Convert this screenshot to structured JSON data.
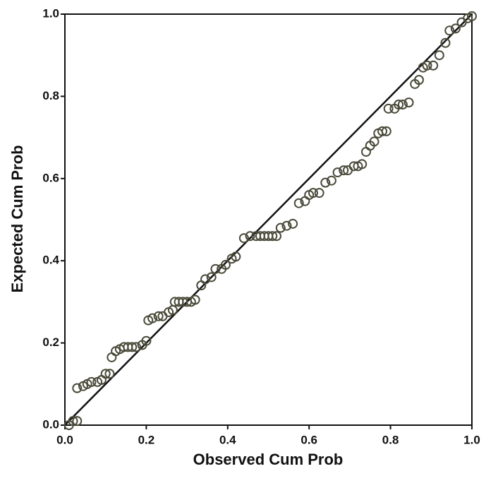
{
  "chart_data": {
    "type": "scatter",
    "x_label": "Observed Cum Prob",
    "y_label": "Expected Cum Prob",
    "color": "#4a4a3a",
    "xlim": [
      0,
      1
    ],
    "ylim": [
      0,
      1
    ],
    "xticks": [
      {
        "value": 0,
        "label": "0.0"
      },
      0.2,
      0.4,
      0.6,
      0.8,
      {
        "value": 1,
        "label": "1.0"
      }
    ],
    "yticks": [
      {
        "value": 0,
        "label": "0.0"
      },
      0.2,
      0.4,
      0.6,
      0.8,
      {
        "value": 1,
        "label": "1.0"
      }
    ],
    "x": [
      0.01,
      0.02,
      0.03,
      0.03,
      0.045,
      0.055,
      0.065,
      0.08,
      0.09,
      0.1,
      0.11,
      0.115,
      0.125,
      0.135,
      0.145,
      0.155,
      0.165,
      0.175,
      0.19,
      0.2,
      0.205,
      0.215,
      0.23,
      0.24,
      0.255,
      0.265,
      0.27,
      0.28,
      0.29,
      0.3,
      0.31,
      0.32,
      0.335,
      0.345,
      0.36,
      0.37,
      0.385,
      0.395,
      0.41,
      0.42,
      0.44,
      0.455,
      0.47,
      0.48,
      0.49,
      0.5,
      0.51,
      0.52,
      0.53,
      0.545,
      0.56,
      0.575,
      0.59,
      0.6,
      0.61,
      0.625,
      0.64,
      0.655,
      0.67,
      0.685,
      0.695,
      0.71,
      0.72,
      0.73,
      0.74,
      0.75,
      0.76,
      0.77,
      0.78,
      0.79,
      0.795,
      0.81,
      0.82,
      0.83,
      0.845,
      0.86,
      0.87,
      0.88,
      0.89,
      0.905,
      0.92,
      0.935,
      0.945,
      0.96,
      0.975,
      0.99,
      1.0
    ],
    "values": [
      0.0,
      0.01,
      0.01,
      0.09,
      0.095,
      0.1,
      0.105,
      0.105,
      0.11,
      0.125,
      0.125,
      0.165,
      0.18,
      0.185,
      0.19,
      0.19,
      0.19,
      0.19,
      0.195,
      0.205,
      0.255,
      0.26,
      0.265,
      0.265,
      0.275,
      0.28,
      0.3,
      0.3,
      0.3,
      0.3,
      0.3,
      0.305,
      0.34,
      0.355,
      0.36,
      0.38,
      0.38,
      0.39,
      0.405,
      0.41,
      0.455,
      0.46,
      0.46,
      0.46,
      0.46,
      0.46,
      0.46,
      0.46,
      0.48,
      0.485,
      0.49,
      0.54,
      0.545,
      0.56,
      0.565,
      0.565,
      0.59,
      0.595,
      0.615,
      0.62,
      0.62,
      0.63,
      0.63,
      0.635,
      0.665,
      0.68,
      0.69,
      0.71,
      0.715,
      0.715,
      0.77,
      0.77,
      0.78,
      0.78,
      0.785,
      0.83,
      0.84,
      0.87,
      0.875,
      0.875,
      0.9,
      0.93,
      0.96,
      0.965,
      0.98,
      0.99,
      0.995
    ]
  }
}
